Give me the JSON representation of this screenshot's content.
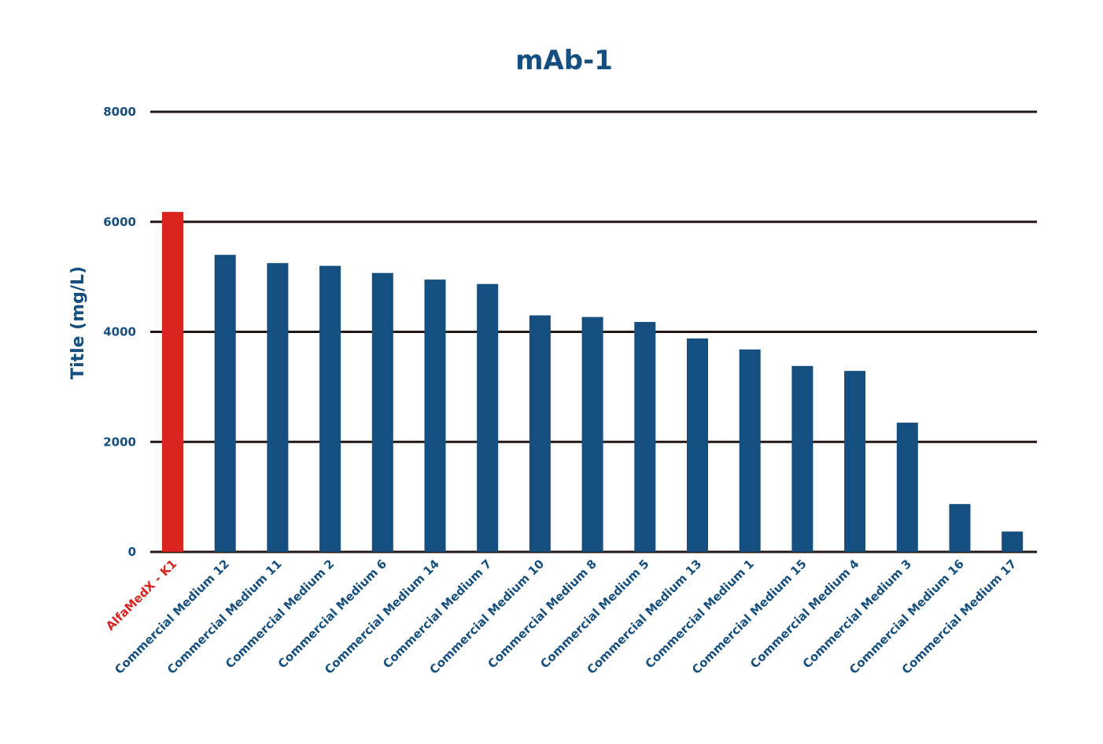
{
  "chart_data": {
    "type": "bar",
    "title": "mAb-1",
    "xlabel": "",
    "ylabel": "Title (mg/L)",
    "ylim": [
      0,
      8000
    ],
    "yticks": [
      0,
      2000,
      4000,
      6000,
      8000
    ],
    "grid": true,
    "categories": [
      "AlfaMedX - K1",
      "Commercial Medium 12",
      "Commercial Medium 11",
      "Commercial Medium 2",
      "Commercial Medium 6",
      "Commercial Medium 14",
      "Commercial Medium 7",
      "Commercial Medium 10",
      "Commercial Medium 8",
      "Commercial Medium 5",
      "Commercial Medium 13",
      "Commercial Medium 1",
      "Commercial Medium 15",
      "Commercial Medium 4",
      "Commercial Medium 3",
      "Commercial Medium 16",
      "Commercial Medium 17"
    ],
    "values": [
      6180,
      5400,
      5250,
      5200,
      5070,
      4950,
      4870,
      4300,
      4270,
      4180,
      3880,
      3680,
      3380,
      3290,
      2350,
      870,
      370
    ],
    "colors": {
      "highlight": "#d92420",
      "default": "#154f80",
      "grid": "#231815",
      "text": "#154f80"
    },
    "highlight_index": 0
  }
}
